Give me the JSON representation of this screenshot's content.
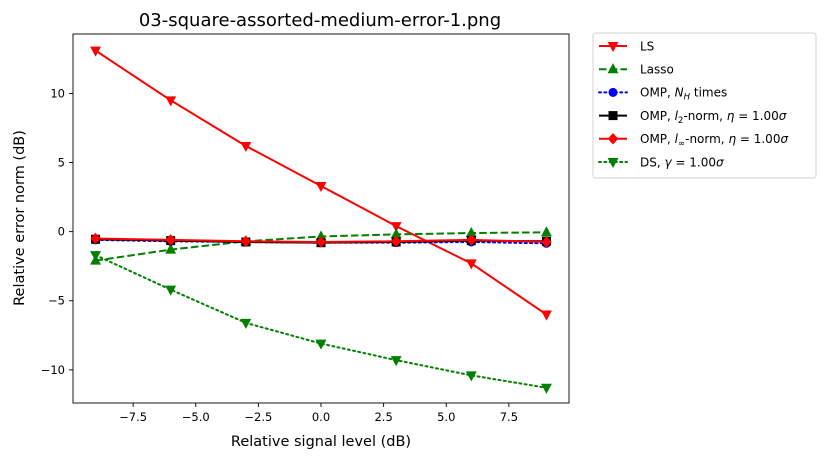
{
  "chart_data": {
    "type": "line",
    "title": "03-square-assorted-medium-error-1.png",
    "xlabel": "Relative signal level (dB)",
    "ylabel": "Relative error norm (dB)",
    "xlim": [
      -9.9,
      9.9
    ],
    "ylim": [
      -12.4,
      14.3
    ],
    "xticks": [
      -7.5,
      -5.0,
      -2.5,
      0.0,
      2.5,
      5.0,
      7.5
    ],
    "xtick_labels": [
      "−7.5",
      "−5.0",
      "−2.5",
      "0.0",
      "2.5",
      "5.0",
      "7.5"
    ],
    "yticks": [
      -10,
      -5,
      0,
      5,
      10
    ],
    "ytick_labels": [
      "−10",
      "−5",
      "0",
      "5",
      "10"
    ],
    "grid": false,
    "legend_position": "outside-top-right",
    "x": [
      -9,
      -6,
      -3,
      0,
      3,
      6,
      9
    ],
    "series": [
      {
        "key": "ls",
        "name_parts": [
          {
            "t": "LS"
          }
        ],
        "color": "#ff0000",
        "dash": "solid",
        "marker": "triangle-down",
        "values": [
          13.1,
          9.5,
          6.2,
          3.3,
          0.4,
          -2.3,
          -6.0
        ]
      },
      {
        "key": "lasso",
        "name_parts": [
          {
            "t": "Lasso"
          }
        ],
        "color": "#008000",
        "dash": "dashed",
        "marker": "triangle-up",
        "values": [
          -2.1,
          -1.3,
          -0.7,
          -0.35,
          -0.2,
          -0.1,
          -0.05
        ]
      },
      {
        "key": "omp-nh",
        "name_parts": [
          {
            "t": "OMP, "
          },
          {
            "t": "N",
            "i": true
          },
          {
            "t": "H",
            "i": true,
            "sub": true
          },
          {
            "t": " times"
          }
        ],
        "color": "#0000ff",
        "dash": "dotted",
        "marker": "circle",
        "values": [
          -0.6,
          -0.7,
          -0.75,
          -0.8,
          -0.8,
          -0.75,
          -0.85
        ]
      },
      {
        "key": "omp-l2",
        "name_parts": [
          {
            "t": "OMP, "
          },
          {
            "t": "l",
            "i": true
          },
          {
            "t": "2",
            "sub": true
          },
          {
            "t": "-norm, "
          },
          {
            "t": "η",
            "i": true
          },
          {
            "t": " = 1.00"
          },
          {
            "t": "σ",
            "i": true
          }
        ],
        "color": "#000000",
        "dash": "solid",
        "marker": "square",
        "values": [
          -0.55,
          -0.65,
          -0.75,
          -0.8,
          -0.75,
          -0.65,
          -0.7
        ]
      },
      {
        "key": "omp-linf",
        "name_parts": [
          {
            "t": "OMP, "
          },
          {
            "t": "l",
            "i": true
          },
          {
            "t": "∞",
            "sub": true
          },
          {
            "t": "-norm, "
          },
          {
            "t": "η",
            "i": true
          },
          {
            "t": " = 1.00"
          },
          {
            "t": "σ",
            "i": true
          }
        ],
        "color": "#ff0000",
        "dash": "solid",
        "marker": "diamond",
        "values": [
          -0.5,
          -0.6,
          -0.7,
          -0.75,
          -0.7,
          -0.6,
          -0.75
        ]
      },
      {
        "key": "ds",
        "name_parts": [
          {
            "t": "DS, "
          },
          {
            "t": "γ",
            "i": true
          },
          {
            "t": " = 1.00"
          },
          {
            "t": "σ",
            "i": true
          }
        ],
        "color": "#008000",
        "dash": "dotted",
        "marker": "triangle-down",
        "values": [
          -1.7,
          -4.2,
          -6.6,
          -8.1,
          -9.3,
          -10.4,
          -11.3
        ]
      }
    ]
  }
}
